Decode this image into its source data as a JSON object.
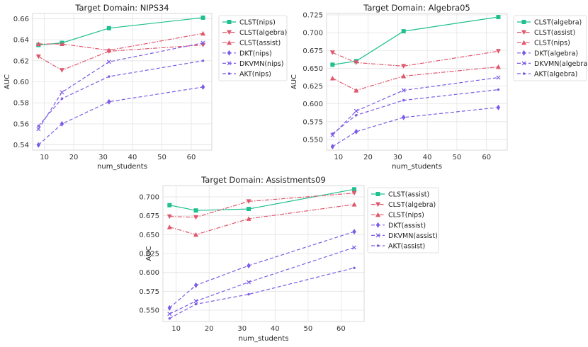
{
  "chart_data": [
    {
      "type": "line",
      "title": "Target Domain: NIPS34",
      "xlabel": "num_students",
      "ylabel": "AUC",
      "xlim": [
        6,
        67
      ],
      "ylim": [
        0.535,
        0.665
      ],
      "xticks": [
        10,
        20,
        30,
        40,
        50,
        60
      ],
      "yticks": [
        0.54,
        0.56,
        0.58,
        0.6,
        0.62,
        0.64,
        0.66
      ],
      "ytick_decimals": 2,
      "grid": true,
      "legend_position": "outside-right",
      "x": [
        8,
        16,
        32,
        64
      ],
      "series": [
        {
          "name": "CLST(nips)",
          "values": [
            0.635,
            0.637,
            0.651,
            0.661
          ],
          "color": "#1fbf8f",
          "marker": "square",
          "dash": "solid"
        },
        {
          "name": "CLST(algebra)",
          "values": [
            0.624,
            0.611,
            0.629,
            0.635
          ],
          "color": "#e0566b",
          "marker": "triangle-down",
          "dash": "dashdot"
        },
        {
          "name": "CLST(assist)",
          "values": [
            0.636,
            0.636,
            0.63,
            0.646
          ],
          "color": "#e0566b",
          "marker": "triangle-up",
          "dash": "dashdot"
        },
        {
          "name": "DKT(nips)",
          "values": [
            0.54,
            0.56,
            0.581,
            0.595
          ],
          "color": "#7b5be6",
          "marker": "diamond",
          "dash": "dashed"
        },
        {
          "name": "DKVMN(nips)",
          "values": [
            0.555,
            0.59,
            0.619,
            0.637
          ],
          "color": "#7b5be6",
          "marker": "x",
          "dash": "dashed"
        },
        {
          "name": "AKT(nips)",
          "values": [
            0.558,
            0.584,
            0.605,
            0.62
          ],
          "color": "#7b5be6",
          "marker": "dot",
          "dash": "dashed"
        }
      ]
    },
    {
      "type": "line",
      "title": "Target Domain: Algebra05",
      "xlabel": "num_students",
      "ylabel": "AUC",
      "xlim": [
        6,
        67
      ],
      "ylim": [
        0.535,
        0.727
      ],
      "xticks": [
        10,
        20,
        30,
        40,
        50,
        60
      ],
      "yticks": [
        0.55,
        0.575,
        0.6,
        0.625,
        0.65,
        0.675,
        0.7,
        0.725
      ],
      "ytick_decimals": 3,
      "grid": true,
      "legend_position": "outside-right",
      "x": [
        8,
        16,
        32,
        64
      ],
      "series": [
        {
          "name": "CLST(algebra)",
          "values": [
            0.655,
            0.66,
            0.702,
            0.722
          ],
          "color": "#1fbf8f",
          "marker": "square",
          "dash": "solid"
        },
        {
          "name": "CLST(assist)",
          "values": [
            0.672,
            0.658,
            0.653,
            0.674
          ],
          "color": "#e0566b",
          "marker": "triangle-down",
          "dash": "dashdot"
        },
        {
          "name": "CLST(nips)",
          "values": [
            0.636,
            0.619,
            0.639,
            0.652
          ],
          "color": "#e0566b",
          "marker": "triangle-up",
          "dash": "dashdot"
        },
        {
          "name": "DKT(algebra)",
          "values": [
            0.54,
            0.561,
            0.581,
            0.595
          ],
          "color": "#7b5be6",
          "marker": "diamond",
          "dash": "dashed"
        },
        {
          "name": "DKVMN(algebra)",
          "values": [
            0.556,
            0.59,
            0.619,
            0.637
          ],
          "color": "#7b5be6",
          "marker": "x",
          "dash": "dashed"
        },
        {
          "name": "AKT(algebra)",
          "values": [
            0.558,
            0.584,
            0.605,
            0.62
          ],
          "color": "#7b5be6",
          "marker": "dot",
          "dash": "dashed"
        }
      ]
    },
    {
      "type": "line",
      "title": "Target Domain: Assistments09",
      "xlabel": "num_students",
      "ylabel": "AUC",
      "xlim": [
        6,
        67
      ],
      "ylim": [
        0.535,
        0.715
      ],
      "xticks": [
        10,
        20,
        30,
        40,
        50,
        60
      ],
      "yticks": [
        0.55,
        0.575,
        0.6,
        0.625,
        0.65,
        0.675,
        0.7
      ],
      "ytick_decimals": 3,
      "grid": true,
      "legend_position": "outside-right",
      "x": [
        8,
        16,
        32,
        64
      ],
      "series": [
        {
          "name": "CLST(assist)",
          "values": [
            0.689,
            0.682,
            0.684,
            0.71
          ],
          "color": "#1fbf8f",
          "marker": "square",
          "dash": "solid"
        },
        {
          "name": "CLST(algebra)",
          "values": [
            0.674,
            0.673,
            0.694,
            0.705
          ],
          "color": "#e0566b",
          "marker": "triangle-down",
          "dash": "dashdot"
        },
        {
          "name": "CLST(nips)",
          "values": [
            0.66,
            0.65,
            0.671,
            0.69
          ],
          "color": "#e0566b",
          "marker": "triangle-up",
          "dash": "dashdot"
        },
        {
          "name": "DKT(assist)",
          "values": [
            0.553,
            0.583,
            0.609,
            0.654
          ],
          "color": "#7b5be6",
          "marker": "diamond",
          "dash": "dashed"
        },
        {
          "name": "DKVMN(assist)",
          "values": [
            0.545,
            0.562,
            0.587,
            0.633
          ],
          "color": "#7b5be6",
          "marker": "x",
          "dash": "dashed"
        },
        {
          "name": "AKT(assist)",
          "values": [
            0.539,
            0.558,
            0.571,
            0.606
          ],
          "color": "#7b5be6",
          "marker": "dot",
          "dash": "dashed"
        }
      ]
    }
  ]
}
